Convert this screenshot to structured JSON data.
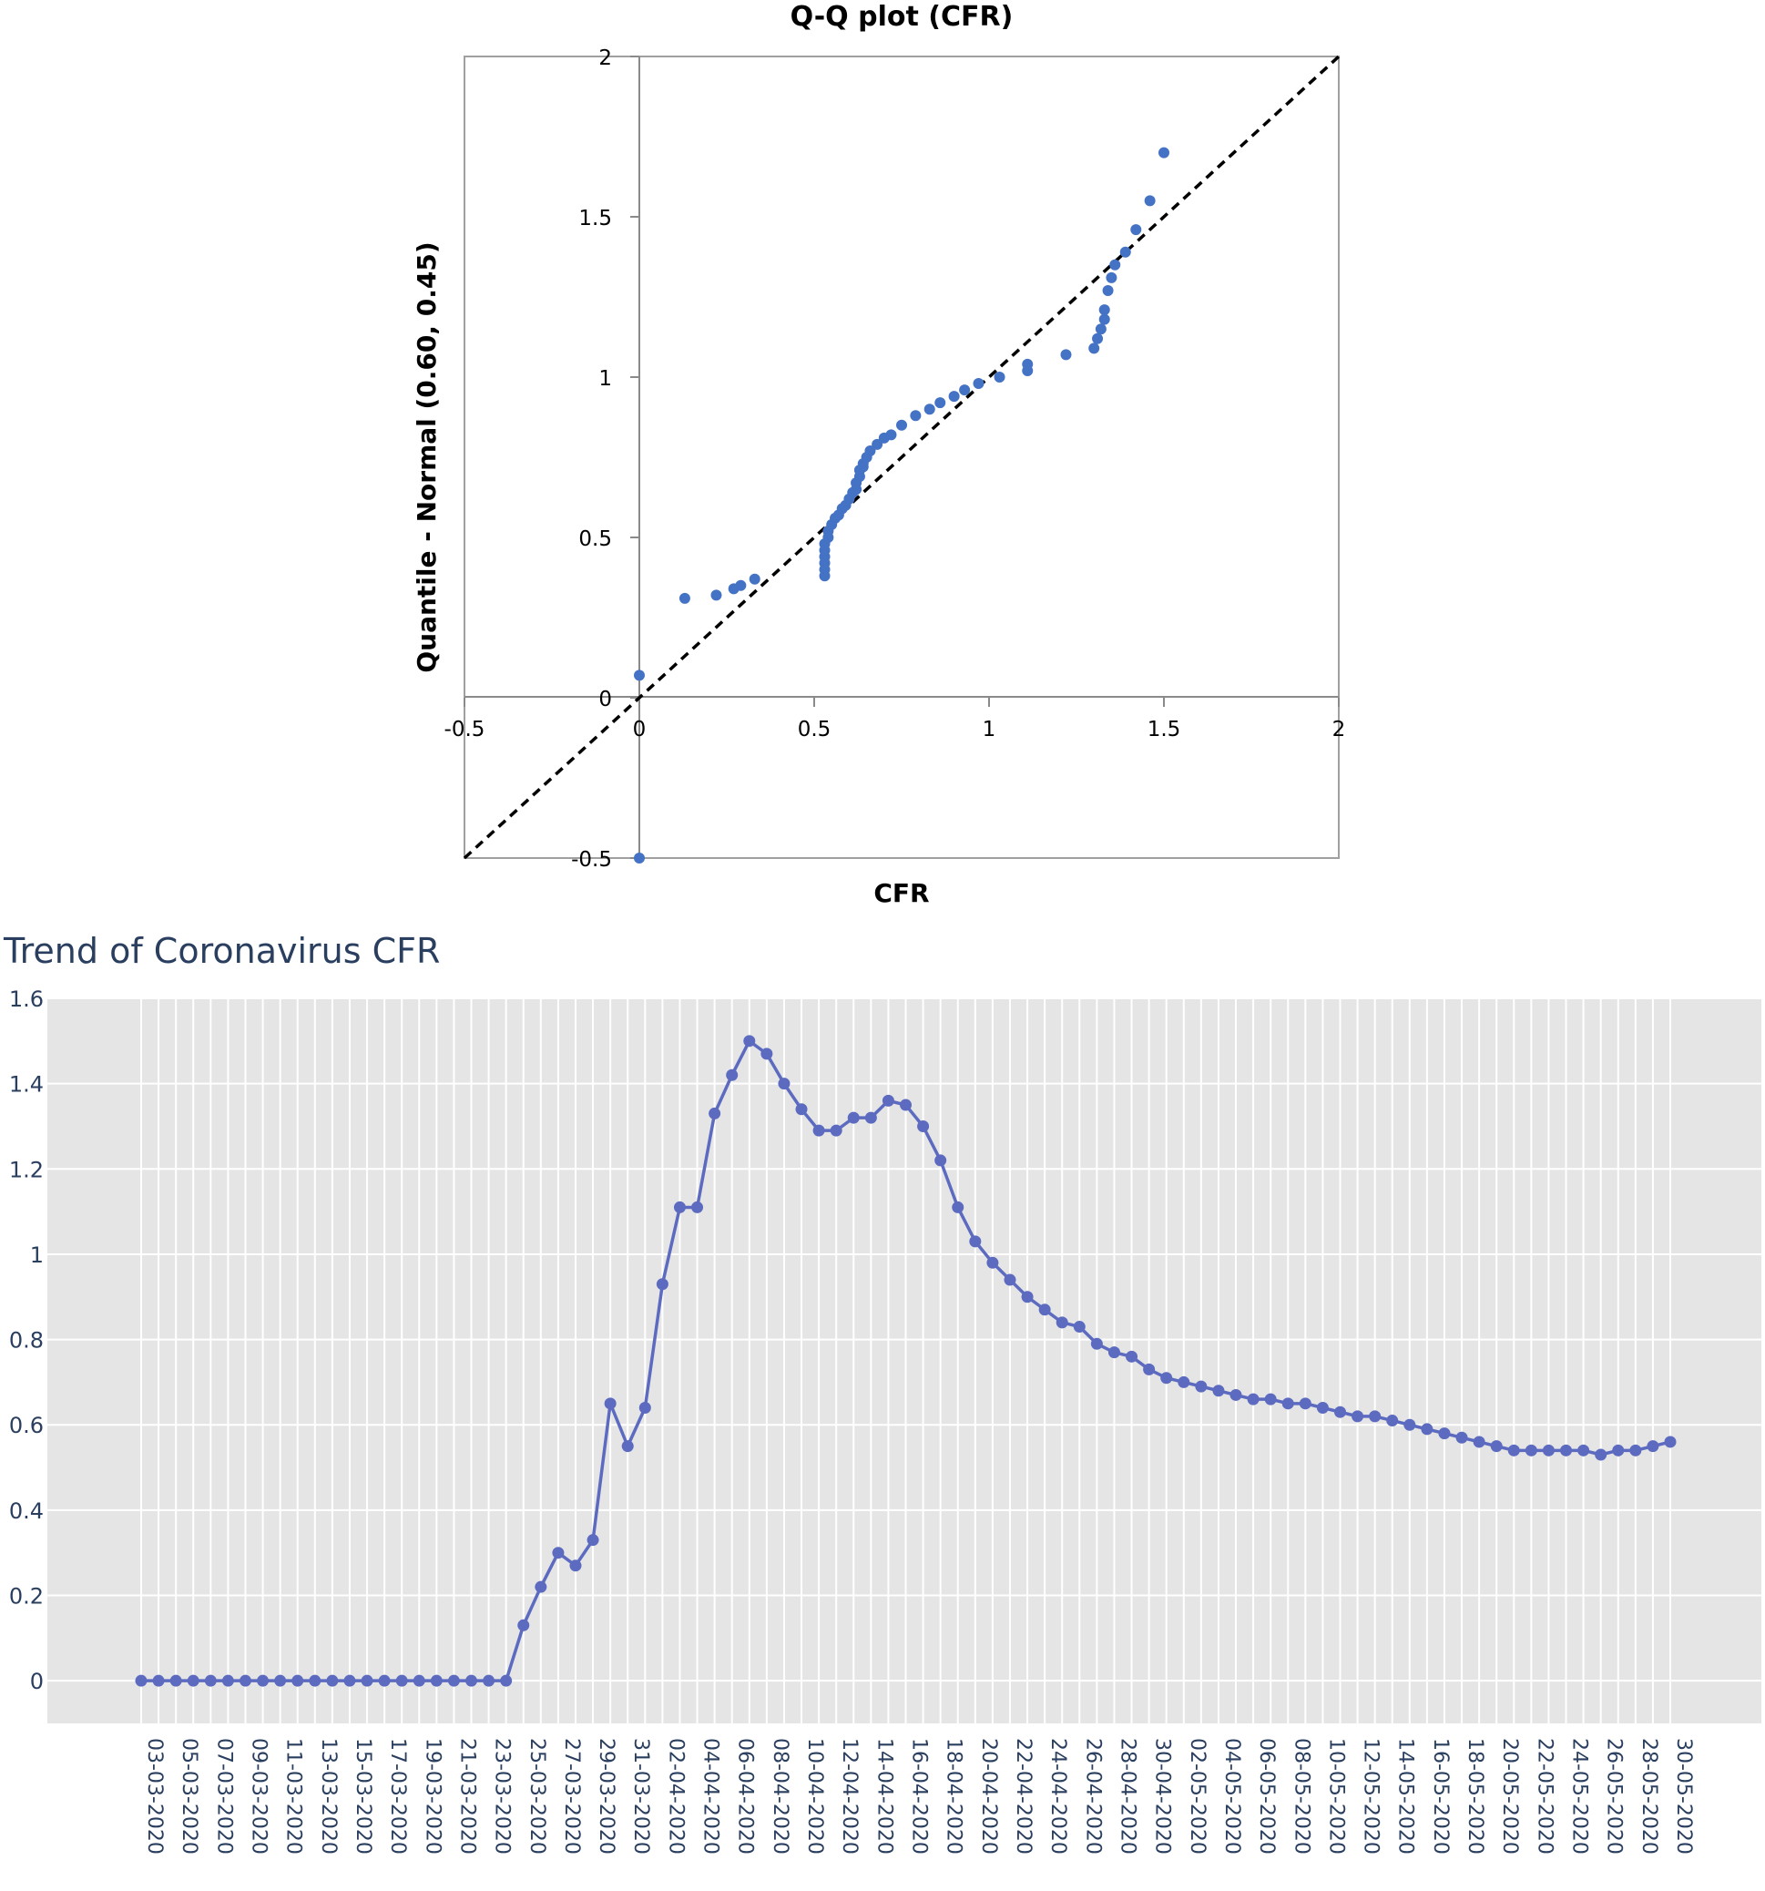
{
  "qq_plot": {
    "title": "Q-Q plot (CFR)",
    "xlabel": "CFR",
    "ylabel": "Quantile - Normal (0.60, 0.45)",
    "x_ticks": [
      "-0.5",
      "0",
      "0.5",
      "1",
      "1.5",
      "2"
    ],
    "y_ticks": [
      "-0.5",
      "0",
      "0.5",
      "1",
      "1.5",
      "2"
    ],
    "colors": {
      "point": "#4472c4",
      "reference": "#000000"
    }
  },
  "trend": {
    "title": "Trend of Coronavirus CFR",
    "y_ticks": [
      "0",
      "0.2",
      "0.4",
      "0.6",
      "0.8",
      "1",
      "1.2",
      "1.4",
      "1.6"
    ],
    "x_tick_labels": [
      "03-03-2020",
      "05-03-2020",
      "07-03-2020",
      "09-03-2020",
      "11-03-2020",
      "13-03-2020",
      "15-03-2020",
      "17-03-2020",
      "19-03-2020",
      "21-03-2020",
      "23-03-2020",
      "25-03-2020",
      "27-03-2020",
      "29-03-2020",
      "31-03-2020",
      "02-04-2020",
      "04-04-2020",
      "06-04-2020",
      "08-04-2020",
      "10-04-2020",
      "12-04-2020",
      "14-04-2020",
      "16-04-2020",
      "18-04-2020",
      "20-04-2020",
      "22-04-2020",
      "24-04-2020",
      "26-04-2020",
      "28-04-2020",
      "30-04-2020",
      "02-05-2020",
      "04-05-2020",
      "06-05-2020",
      "08-05-2020",
      "10-05-2020",
      "12-05-2020",
      "14-05-2020",
      "16-05-2020",
      "18-05-2020",
      "20-05-2020",
      "22-05-2020",
      "24-05-2020",
      "26-05-2020",
      "28-05-2020",
      "30-05-2020"
    ],
    "colors": {
      "line": "#5c6bc0",
      "plot_bg": "#e5e5e5",
      "grid": "#ffffff"
    }
  },
  "chart_data": [
    {
      "type": "scatter",
      "title": "Q-Q plot (CFR)",
      "xlabel": "CFR",
      "ylabel": "Quantile - Normal (0.60, 0.45)",
      "xlim": [
        -0.5,
        2
      ],
      "ylim": [
        -0.5,
        2
      ],
      "grid": false,
      "reference_line": {
        "from": [
          -0.5,
          -0.5
        ],
        "to": [
          2,
          2
        ],
        "style": "dashed"
      },
      "x": [
        0,
        0,
        0.13,
        0.22,
        0.27,
        0.29,
        0.33,
        0.53,
        0.53,
        0.53,
        0.53,
        0.53,
        0.53,
        0.54,
        0.54,
        0.55,
        0.56,
        0.57,
        0.58,
        0.59,
        0.6,
        0.61,
        0.62,
        0.62,
        0.63,
        0.63,
        0.64,
        0.64,
        0.65,
        0.66,
        0.68,
        0.7,
        0.72,
        0.75,
        0.79,
        0.83,
        0.86,
        0.9,
        0.93,
        0.97,
        1.03,
        1.11,
        1.11,
        1.22,
        1.3,
        1.31,
        1.32,
        1.33,
        1.33,
        1.34,
        1.35,
        1.36,
        1.39,
        1.42,
        1.46,
        1.5
      ],
      "y": [
        0.07,
        -0.5,
        0.31,
        0.32,
        0.34,
        0.35,
        0.37,
        0.38,
        0.4,
        0.42,
        0.44,
        0.46,
        0.48,
        0.5,
        0.52,
        0.54,
        0.56,
        0.57,
        0.59,
        0.6,
        0.62,
        0.64,
        0.65,
        0.67,
        0.69,
        0.71,
        0.72,
        0.73,
        0.75,
        0.77,
        0.79,
        0.81,
        0.82,
        0.85,
        0.88,
        0.9,
        0.92,
        0.94,
        0.96,
        0.98,
        1,
        1.02,
        1.04,
        1.07,
        1.09,
        1.12,
        1.15,
        1.18,
        1.21,
        1.27,
        1.31,
        1.35,
        1.39,
        1.46,
        1.55,
        1.7
      ]
    },
    {
      "type": "line",
      "title": "Trend of Coronavirus CFR",
      "xlabel": "",
      "ylabel": "",
      "ylim": [
        -0.1,
        1.6
      ],
      "grid": true,
      "x": [
        "03-03-2020",
        "04-03-2020",
        "05-03-2020",
        "06-03-2020",
        "07-03-2020",
        "08-03-2020",
        "09-03-2020",
        "10-03-2020",
        "11-03-2020",
        "12-03-2020",
        "13-03-2020",
        "14-03-2020",
        "15-03-2020",
        "16-03-2020",
        "17-03-2020",
        "18-03-2020",
        "19-03-2020",
        "20-03-2020",
        "21-03-2020",
        "22-03-2020",
        "23-03-2020",
        "24-03-2020",
        "25-03-2020",
        "26-03-2020",
        "27-03-2020",
        "28-03-2020",
        "29-03-2020",
        "30-03-2020",
        "31-03-2020",
        "01-04-2020",
        "02-04-2020",
        "03-04-2020",
        "04-04-2020",
        "05-04-2020",
        "06-04-2020",
        "07-04-2020",
        "08-04-2020",
        "09-04-2020",
        "10-04-2020",
        "11-04-2020",
        "12-04-2020",
        "13-04-2020",
        "14-04-2020",
        "15-04-2020",
        "16-04-2020",
        "17-04-2020",
        "18-04-2020",
        "19-04-2020",
        "20-04-2020",
        "21-04-2020",
        "22-04-2020",
        "23-04-2020",
        "24-04-2020",
        "25-04-2020",
        "26-04-2020",
        "27-04-2020",
        "28-04-2020",
        "29-04-2020",
        "30-04-2020",
        "01-05-2020",
        "02-05-2020",
        "03-05-2020",
        "04-05-2020",
        "05-05-2020",
        "06-05-2020",
        "07-05-2020",
        "08-05-2020",
        "09-05-2020",
        "10-05-2020",
        "11-05-2020",
        "12-05-2020",
        "13-05-2020",
        "14-05-2020",
        "15-05-2020",
        "16-05-2020",
        "17-05-2020",
        "18-05-2020",
        "19-05-2020",
        "20-05-2020",
        "21-05-2020",
        "22-05-2020",
        "23-05-2020",
        "24-05-2020",
        "25-05-2020",
        "26-05-2020",
        "27-05-2020",
        "28-05-2020",
        "29-05-2020",
        "30-05-2020"
      ],
      "series": [
        {
          "name": "CFR",
          "values": [
            0,
            0,
            0,
            0,
            0,
            0,
            0,
            0,
            0,
            0,
            0,
            0,
            0,
            0,
            0,
            0,
            0,
            0,
            0,
            0,
            0,
            0,
            0.13,
            0.22,
            0.3,
            0.27,
            0.33,
            0.65,
            0.55,
            0.64,
            0.93,
            1.11,
            1.11,
            1.33,
            1.42,
            1.5,
            1.47,
            1.4,
            1.34,
            1.29,
            1.29,
            1.32,
            1.32,
            1.36,
            1.35,
            1.3,
            1.22,
            1.11,
            1.03,
            0.98,
            0.94,
            0.9,
            0.87,
            0.84,
            0.83,
            0.79,
            0.77,
            0.76,
            0.73,
            0.71,
            0.7,
            0.69,
            0.68,
            0.67,
            0.66,
            0.66,
            0.65,
            0.65,
            0.64,
            0.63,
            0.62,
            0.62,
            0.61,
            0.6,
            0.59,
            0.58,
            0.57,
            0.56,
            0.55,
            0.54,
            0.54,
            0.54,
            0.54,
            0.54,
            0.53,
            0.54,
            0.54,
            0.55,
            0.56
          ]
        }
      ]
    }
  ]
}
